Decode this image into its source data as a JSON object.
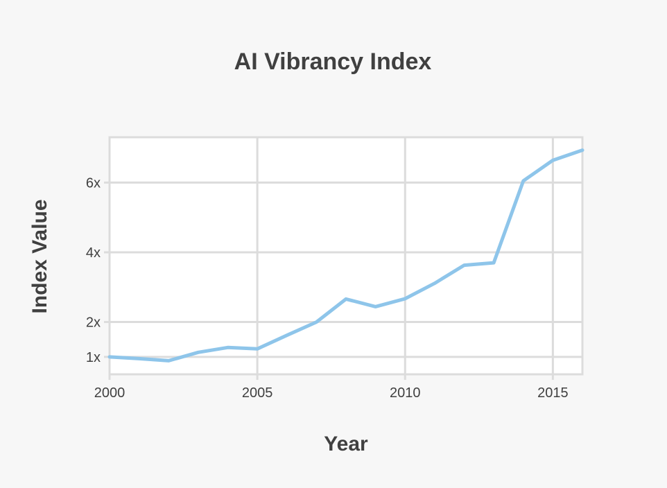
{
  "colors": {
    "background": "#f7f7f7",
    "plot_background": "#ffffff",
    "grid": "#dcdcdc",
    "text": "#404040",
    "series": "#8ec5ea"
  },
  "chart_data": {
    "type": "line",
    "title": "AI Vibrancy Index",
    "xlabel": "Year",
    "ylabel": "Index Value",
    "xlim": [
      2000,
      2016
    ],
    "ylim": [
      0.5,
      7.3
    ],
    "grid": true,
    "legend": "none",
    "x_ticks": [
      {
        "value": 2000,
        "label": "2000"
      },
      {
        "value": 2005,
        "label": "2005"
      },
      {
        "value": 2010,
        "label": "2010"
      },
      {
        "value": 2015,
        "label": "2015"
      }
    ],
    "y_ticks": [
      {
        "value": 1,
        "label": "1x"
      },
      {
        "value": 2,
        "label": "2x"
      },
      {
        "value": 4,
        "label": "4x"
      },
      {
        "value": 6,
        "label": "6x"
      }
    ],
    "series": [
      {
        "x": [
          2000,
          2001,
          2002,
          2003,
          2004,
          2005,
          2006,
          2007,
          2008,
          2009,
          2010,
          2011,
          2012,
          2013,
          2014,
          2015,
          2016
        ],
        "y": [
          1.0,
          0.95,
          0.89,
          1.13,
          1.27,
          1.23,
          1.62,
          2.0,
          2.66,
          2.44,
          2.67,
          3.11,
          3.63,
          3.7,
          6.05,
          6.64,
          6.93
        ]
      }
    ]
  }
}
